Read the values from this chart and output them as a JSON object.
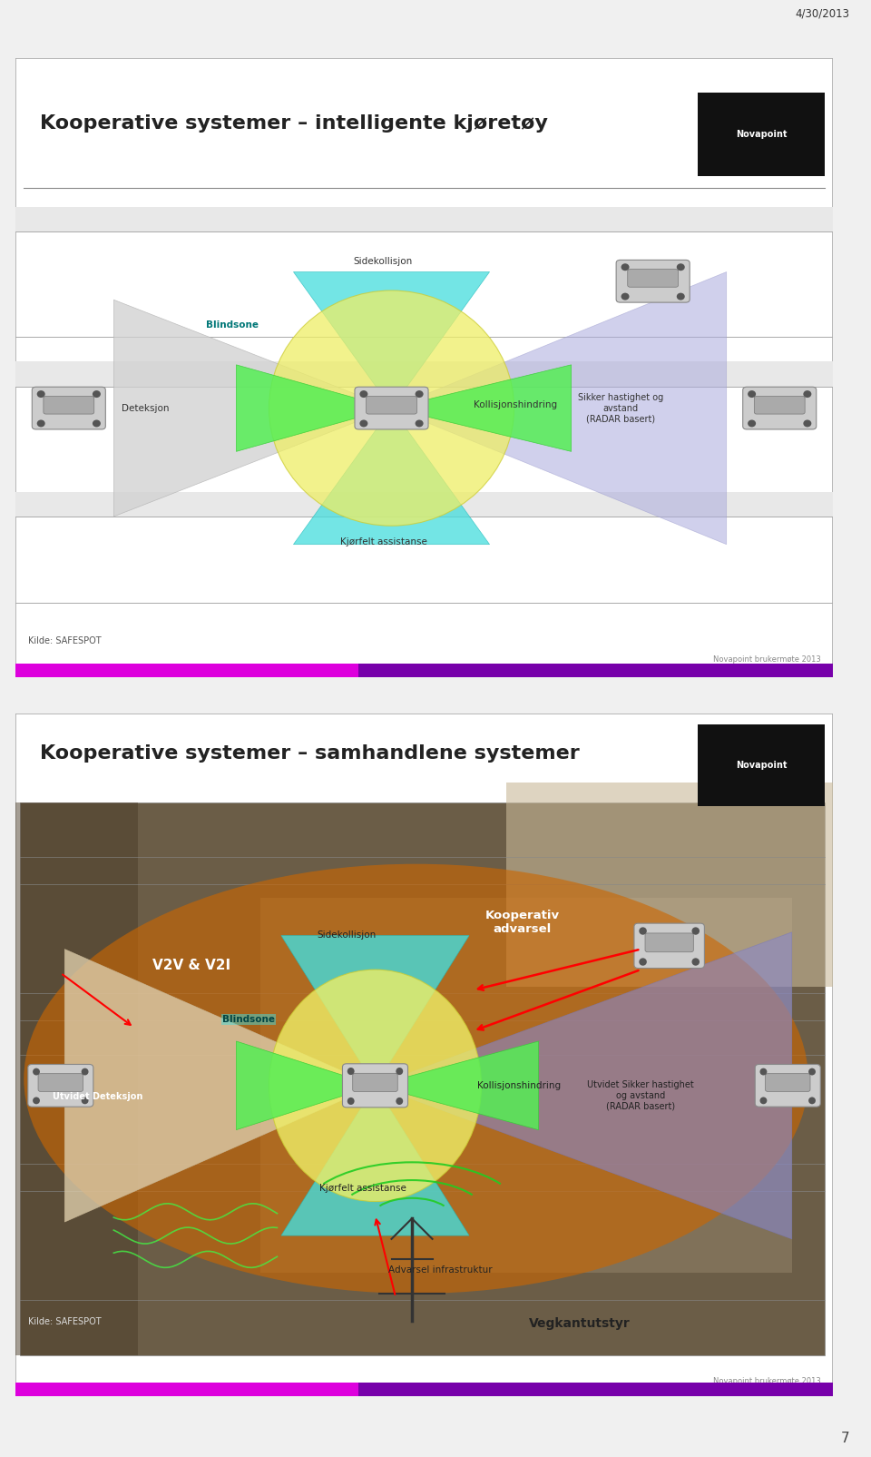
{
  "page_bg": "#f0f0f0",
  "date_text": "4/30/2013",
  "page_number": "7",
  "slide1": {
    "title": "Kooperative systemer – intelligente kjøretøy",
    "novapoint_text": "Novapoint",
    "footer_text": "Novapoint brukermøte 2013",
    "source_text": "Kilde: SAFESPOT",
    "labels": {
      "blindsone": "Blindsone",
      "sidekollisjon": "Sidekollisjon",
      "deteksjon": "Deteksjon",
      "kollisjonshindring": "Kollisjonshindring",
      "sikker_hastighet": "Sikker hastighet og\navstand\n(RADAR basert)",
      "kjorfelt": "Kjørfelt assistanse"
    }
  },
  "slide2": {
    "title": "Kooperative systemer – samhandlene systemer",
    "novapoint_text": "Novapoint",
    "footer_text": "Novapoint brukermøte 2013",
    "source_text": "Kilde: SAFESPOT",
    "labels": {
      "v2v": "V2V & V2I",
      "kooperativ": "Kooperativ\nadvarsel",
      "blindsone": "Blindsone",
      "sidekollisjon": "Sidekollisjon",
      "utvidet_deteksjon": "Utvidet Deteksjon",
      "kollisjonshindring": "Kollisjonshindring",
      "utvidet_sikker": "Utvidet Sikker hastighet\nog avstand\n(RADAR basert)",
      "kjorfelt": "Kjørfelt assistanse",
      "advarsel_infra": "Advarsel infrastruktur",
      "vegkant": "Vegkantutstyr"
    }
  }
}
